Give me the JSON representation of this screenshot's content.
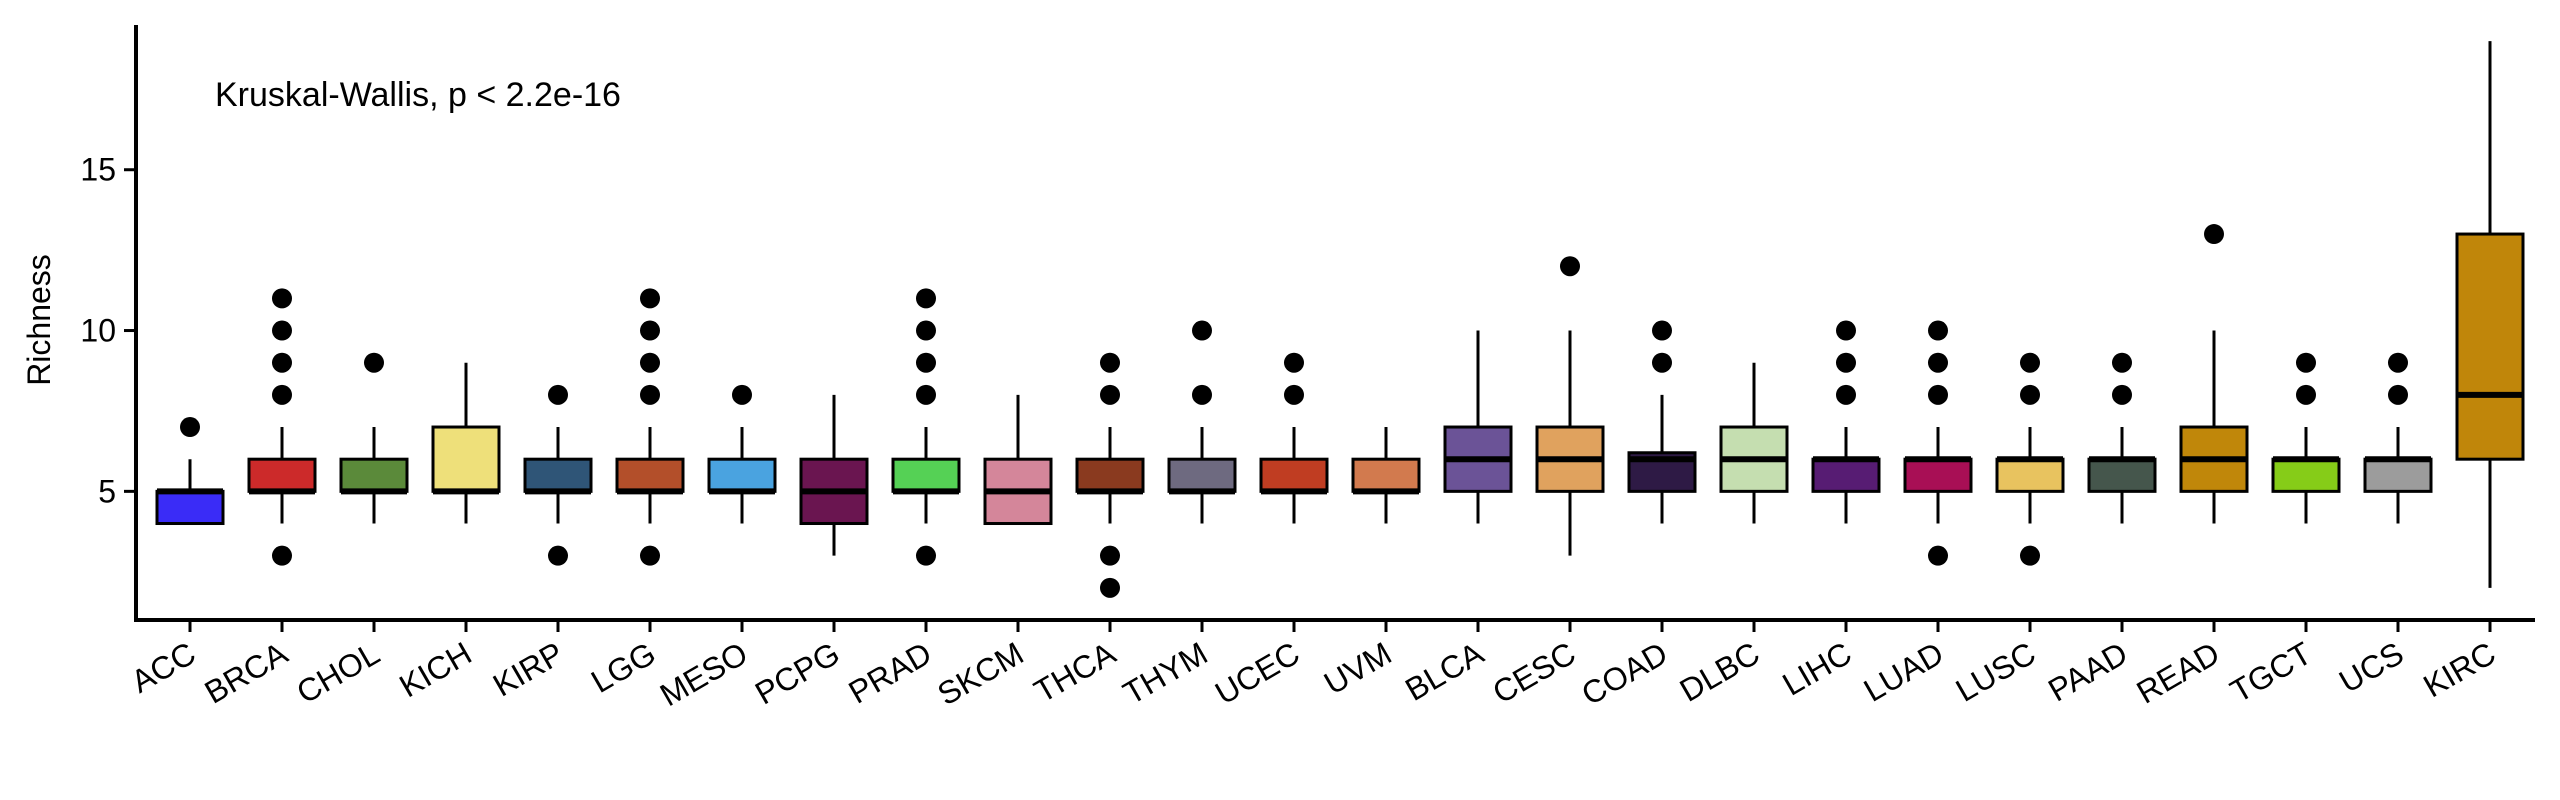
{
  "chart_data": {
    "type": "boxplot",
    "annotation": "Kruskal-Wallis, p < 2.2e-16",
    "ylabel": "Richness",
    "xlabel": "",
    "ylim": [
      1,
      19.5
    ],
    "yticks": [
      5,
      10,
      15
    ],
    "grid": false,
    "legend": "none",
    "categories": [
      {
        "name": "ACC",
        "color": "#3A2CF7",
        "min": 4,
        "q1": 4,
        "median": 5,
        "q3": 5,
        "max": 6,
        "outliers": [
          7
        ]
      },
      {
        "name": "BRCA",
        "color": "#CC2A2A",
        "min": 4,
        "q1": 5,
        "median": 5,
        "q3": 6,
        "max": 7,
        "outliers": [
          3,
          8,
          9,
          10,
          11
        ]
      },
      {
        "name": "CHOL",
        "color": "#5B8A3A",
        "min": 4,
        "q1": 5,
        "median": 5,
        "q3": 6,
        "max": 7,
        "outliers": [
          9
        ]
      },
      {
        "name": "KICH",
        "color": "#EEE07A",
        "min": 4,
        "q1": 5,
        "median": 5,
        "q3": 7,
        "max": 9,
        "outliers": []
      },
      {
        "name": "KIRP",
        "color": "#2F5577",
        "min": 4,
        "q1": 5,
        "median": 5,
        "q3": 6,
        "max": 7,
        "outliers": [
          3,
          8
        ]
      },
      {
        "name": "LGG",
        "color": "#B34F2A",
        "min": 4,
        "q1": 5,
        "median": 5,
        "q3": 6,
        "max": 7,
        "outliers": [
          3,
          8,
          9,
          10,
          11
        ]
      },
      {
        "name": "MESO",
        "color": "#4AA3E0",
        "min": 4,
        "q1": 5,
        "median": 5,
        "q3": 6,
        "max": 7,
        "outliers": [
          8
        ]
      },
      {
        "name": "PCPG",
        "color": "#6A1550",
        "min": 3,
        "q1": 4,
        "median": 5,
        "q3": 6,
        "max": 8,
        "outliers": []
      },
      {
        "name": "PRAD",
        "color": "#55D155",
        "min": 4,
        "q1": 5,
        "median": 5,
        "q3": 6,
        "max": 7,
        "outliers": [
          3,
          8,
          9,
          10,
          11
        ]
      },
      {
        "name": "SKCM",
        "color": "#D4869A",
        "min": 4,
        "q1": 4,
        "median": 5,
        "q3": 6,
        "max": 8,
        "outliers": []
      },
      {
        "name": "THCA",
        "color": "#8A3A1F",
        "min": 4,
        "q1": 5,
        "median": 5,
        "q3": 6,
        "max": 7,
        "outliers": [
          2,
          3,
          8,
          9
        ]
      },
      {
        "name": "THYM",
        "color": "#6E6A80",
        "min": 4,
        "q1": 5,
        "median": 5,
        "q3": 6,
        "max": 7,
        "outliers": [
          8,
          10
        ]
      },
      {
        "name": "UCEC",
        "color": "#C03D22",
        "min": 4,
        "q1": 5,
        "median": 5,
        "q3": 6,
        "max": 7,
        "outliers": [
          8,
          9
        ]
      },
      {
        "name": "UVM",
        "color": "#D27A4E",
        "min": 4,
        "q1": 5,
        "median": 5,
        "q3": 6,
        "max": 7,
        "outliers": []
      },
      {
        "name": "BLCA",
        "color": "#6B5397",
        "min": 4,
        "q1": 5,
        "median": 6,
        "q3": 7,
        "max": 10,
        "outliers": []
      },
      {
        "name": "CESC",
        "color": "#E0A25E",
        "min": 3,
        "q1": 5,
        "median": 6,
        "q3": 7,
        "max": 10,
        "outliers": [
          12
        ]
      },
      {
        "name": "COAD",
        "color": "#2E1A45",
        "min": 4,
        "q1": 5,
        "median": 6,
        "q3": 6.2,
        "max": 8,
        "outliers": [
          9,
          10
        ]
      },
      {
        "name": "DLBC",
        "color": "#C5DEB0",
        "min": 4,
        "q1": 5,
        "median": 6,
        "q3": 7,
        "max": 9,
        "outliers": []
      },
      {
        "name": "LIHC",
        "color": "#571C73",
        "min": 4,
        "q1": 5,
        "median": 6,
        "q3": 6,
        "max": 7,
        "outliers": [
          8,
          9,
          10
        ]
      },
      {
        "name": "LUAD",
        "color": "#A80F55",
        "min": 4,
        "q1": 5,
        "median": 6,
        "q3": 6,
        "max": 7,
        "outliers": [
          3,
          8,
          9,
          10
        ]
      },
      {
        "name": "LUSC",
        "color": "#E8C35F",
        "min": 4,
        "q1": 5,
        "median": 6,
        "q3": 6,
        "max": 7,
        "outliers": [
          3,
          8,
          9
        ]
      },
      {
        "name": "PAAD",
        "color": "#45564C",
        "min": 4,
        "q1": 5,
        "median": 6,
        "q3": 6,
        "max": 7,
        "outliers": [
          8,
          9
        ]
      },
      {
        "name": "READ",
        "color": "#C0870A",
        "min": 4,
        "q1": 5,
        "median": 6,
        "q3": 7,
        "max": 10,
        "outliers": [
          13
        ]
      },
      {
        "name": "TGCT",
        "color": "#86CC18",
        "min": 4,
        "q1": 5,
        "median": 6,
        "q3": 6,
        "max": 7,
        "outliers": [
          8,
          9
        ]
      },
      {
        "name": "UCS",
        "color": "#9C9C9C",
        "min": 4,
        "q1": 5,
        "median": 6,
        "q3": 6,
        "max": 7,
        "outliers": [
          8,
          9
        ]
      },
      {
        "name": "KIRC",
        "color": "#C0860A",
        "min": 2,
        "q1": 6,
        "median": 8,
        "q3": 13,
        "max": 19,
        "outliers": []
      }
    ]
  }
}
